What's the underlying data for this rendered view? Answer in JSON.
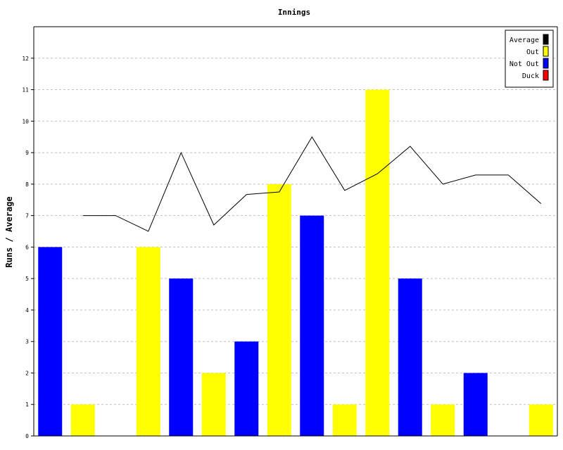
{
  "chart_data": {
    "type": "bar",
    "title": "Innings",
    "xlabel": "",
    "ylabel": "Runs / Average",
    "ylim": [
      0,
      13
    ],
    "y_ticks": [
      0,
      1,
      2,
      3,
      4,
      5,
      6,
      7,
      8,
      9,
      10,
      11,
      12
    ],
    "grid": true,
    "legend_position": "top-right",
    "innings": [
      {
        "runs": 6,
        "kind": "Not Out",
        "average": null
      },
      {
        "runs": 1,
        "kind": "Out",
        "average": 7.0
      },
      {
        "runs": 0,
        "kind": "Out",
        "average": 7.0
      },
      {
        "runs": 6,
        "kind": "Out",
        "average": 6.5
      },
      {
        "runs": 5,
        "kind": "Not Out",
        "average": 9.0
      },
      {
        "runs": 2,
        "kind": "Out",
        "average": 6.7
      },
      {
        "runs": 3,
        "kind": "Not Out",
        "average": 7.67
      },
      {
        "runs": 8,
        "kind": "Out",
        "average": 7.75
      },
      {
        "runs": 7,
        "kind": "Not Out",
        "average": 9.5
      },
      {
        "runs": 1,
        "kind": "Out",
        "average": 7.8
      },
      {
        "runs": 11,
        "kind": "Out",
        "average": 8.33
      },
      {
        "runs": 5,
        "kind": "Not Out",
        "average": 9.2
      },
      {
        "runs": 1,
        "kind": "Out",
        "average": 8.0
      },
      {
        "runs": 2,
        "kind": "Not Out",
        "average": 8.29
      },
      {
        "runs": 0,
        "kind": "Out",
        "average": 8.29
      },
      {
        "runs": 1,
        "kind": "Out",
        "average": 7.38
      }
    ],
    "legend": [
      {
        "name": "Average",
        "color": "#000000"
      },
      {
        "name": "Out",
        "color": "#ffff00"
      },
      {
        "name": "Not Out",
        "color": "#0000ff"
      },
      {
        "name": "Duck",
        "color": "#ff0000"
      }
    ],
    "colors": {
      "Out": "#ffff00",
      "Not Out": "#0000ff",
      "Duck": "#ff0000",
      "Average": "#000000"
    }
  }
}
